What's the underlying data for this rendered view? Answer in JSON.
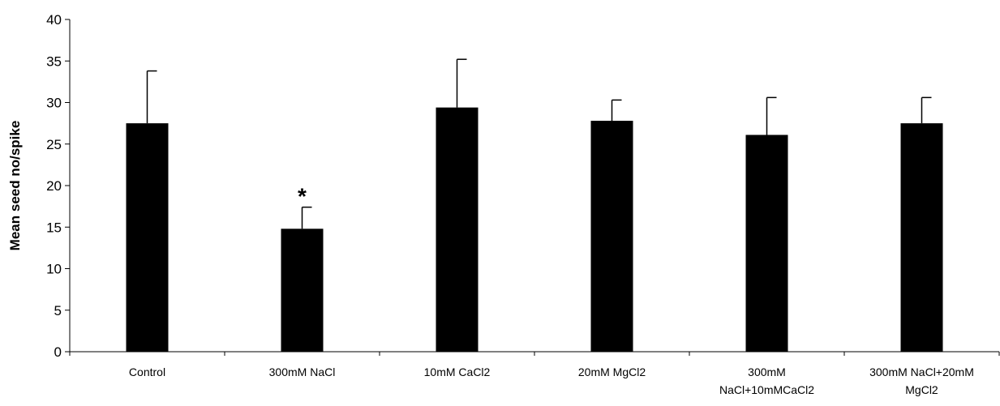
{
  "chart_data": {
    "type": "bar",
    "title": "",
    "xlabel": "",
    "ylabel": "Mean seed no/spike",
    "ylim": [
      0,
      40
    ],
    "yticks": [
      0,
      5,
      10,
      15,
      20,
      25,
      30,
      35,
      40
    ],
    "grid": false,
    "legend": "none",
    "bar_color": "#000000",
    "categories": [
      [
        "Control"
      ],
      [
        "300mM NaCl"
      ],
      [
        "10mM CaCl2"
      ],
      [
        "20mM MgCl2"
      ],
      [
        "300mM",
        "NaCl+10mMCaCl2"
      ],
      [
        "300mM NaCl+20mM",
        "MgCl2"
      ]
    ],
    "values": [
      27.5,
      14.8,
      29.4,
      27.8,
      26.1,
      27.5
    ],
    "error_upper": [
      6.3,
      2.6,
      5.8,
      2.5,
      4.5,
      3.1
    ],
    "annotations": [
      {
        "category_index": 1,
        "text": "*"
      }
    ]
  }
}
